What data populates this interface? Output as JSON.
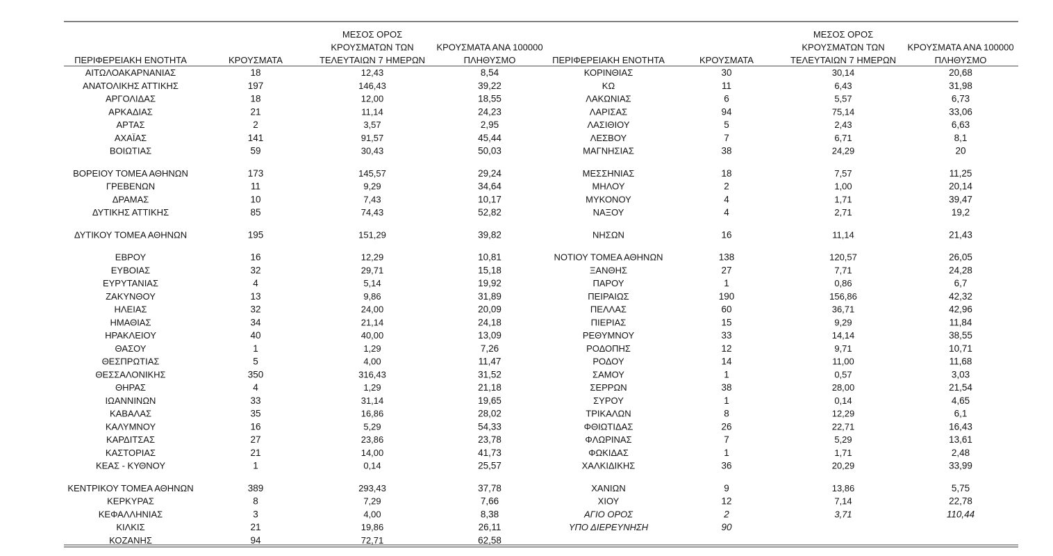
{
  "table": {
    "headers": [
      [
        "ΠΕΡΙΦΕΡΕΙΑΚΗ ΕΝΟΤΗΤΑ"
      ],
      [
        "ΚΡΟΥΣΜΑΤΑ"
      ],
      [
        "ΜΕΣΟΣ ΟΡΟΣ",
        "ΚΡΟΥΣΜΑΤΩΝ ΤΩΝ",
        "ΤΕΛΕΥΤΑΙΩΝ 7 ΗΜΕΡΩΝ"
      ],
      [
        "ΚΡΟΥΣΜΑΤΑ ΑΝΑ 100000",
        "ΠΛΗΘΥΣΜΟ"
      ],
      [
        "ΠΕΡΙΦΕΡΕΙΑΚΗ ΕΝΟΤΗΤΑ"
      ],
      [
        "ΚΡΟΥΣΜΑΤΑ"
      ],
      [
        "ΜΕΣΟΣ ΟΡΟΣ",
        "ΚΡΟΥΣΜΑΤΩΝ ΤΩΝ",
        "ΤΕΛΕΥΤΑΙΩΝ 7 ΗΜΕΡΩΝ"
      ],
      [
        "ΚΡΟΥΣΜΑΤΑ ΑΝΑ 100000",
        "ΠΛΗΘΥΣΜΟ"
      ]
    ],
    "rows": [
      [
        "ΑΙΤΩΛΟΑΚΑΡΝΑΝΙΑΣ",
        "18",
        "12,43",
        "8,54",
        "ΚΟΡΙΝΘΙΑΣ",
        "30",
        "30,14",
        "20,68"
      ],
      [
        "ΑΝΑΤΟΛΙΚΗΣ ΑΤΤΙΚΗΣ",
        "197",
        "146,43",
        "39,22",
        "ΚΩ",
        "11",
        "6,43",
        "31,98"
      ],
      [
        "ΑΡΓΟΛΙΔΑΣ",
        "18",
        "12,00",
        "18,55",
        "ΛΑΚΩΝΙΑΣ",
        "6",
        "5,57",
        "6,73"
      ],
      [
        "ΑΡΚΑΔΙΑΣ",
        "21",
        "11,14",
        "24,23",
        "ΛΑΡΙΣΑΣ",
        "94",
        "75,14",
        "33,06"
      ],
      [
        "ΑΡΤΑΣ",
        "2",
        "3,57",
        "2,95",
        "ΛΑΣΙΘΙΟΥ",
        "5",
        "2,43",
        "6,63"
      ],
      [
        "ΑΧΑΪΑΣ",
        "141",
        "91,57",
        "45,44",
        "ΛΕΣΒΟΥ",
        "7",
        "6,71",
        "8,1"
      ],
      [
        "ΒΟΙΩΤΙΑΣ",
        "59",
        "30,43",
        "50,03",
        "ΜΑΓΝΗΣΙΑΣ",
        "38",
        "24,29",
        "20"
      ],
      [
        "ΒΟΡΕΙΟΥ ΤΟΜΕΑ ΑΘΗΝΩΝ",
        "173",
        "145,57",
        "29,24",
        "ΜΕΣΣΗΝΙΑΣ",
        "18",
        "7,57",
        "11,25"
      ],
      [
        "ΓΡΕΒΕΝΩΝ",
        "11",
        "9,29",
        "34,64",
        "ΜΗΛΟΥ",
        "2",
        "1,00",
        "20,14"
      ],
      [
        "ΔΡΑΜΑΣ",
        "10",
        "7,43",
        "10,17",
        "ΜΥΚΟΝΟΥ",
        "4",
        "1,71",
        "39,47"
      ],
      [
        "ΔΥΤΙΚΗΣ ΑΤΤΙΚΗΣ",
        "85",
        "74,43",
        "52,82",
        "ΝΑΞΟΥ",
        "4",
        "2,71",
        "19,2"
      ],
      [
        "ΔΥΤΙΚΟΥ ΤΟΜΕΑ ΑΘΗΝΩΝ",
        "195",
        "151,29",
        "39,82",
        "ΝΗΣΩΝ",
        "16",
        "11,14",
        "21,43"
      ],
      [
        "ΕΒΡΟΥ",
        "16",
        "12,29",
        "10,81",
        "ΝΟΤΙΟΥ ΤΟΜΕΑ ΑΘΗΝΩΝ",
        "138",
        "120,57",
        "26,05"
      ],
      [
        "ΕΥΒΟΙΑΣ",
        "32",
        "29,71",
        "15,18",
        "ΞΑΝΘΗΣ",
        "27",
        "7,71",
        "24,28"
      ],
      [
        "ΕΥΡΥΤΑΝΙΑΣ",
        "4",
        "5,14",
        "19,92",
        "ΠΑΡΟΥ",
        "1",
        "0,86",
        "6,7"
      ],
      [
        "ΖΑΚΥΝΘΟΥ",
        "13",
        "9,86",
        "31,89",
        "ΠΕΙΡΑΙΩΣ",
        "190",
        "156,86",
        "42,32"
      ],
      [
        "ΗΛΕΙΑΣ",
        "32",
        "24,00",
        "20,09",
        "ΠΕΛΛΑΣ",
        "60",
        "36,71",
        "42,96"
      ],
      [
        "ΗΜΑΘΙΑΣ",
        "34",
        "21,14",
        "24,18",
        "ΠΙΕΡΙΑΣ",
        "15",
        "9,29",
        "11,84"
      ],
      [
        "ΗΡΑΚΛΕΙΟΥ",
        "40",
        "40,00",
        "13,09",
        "ΡΕΘΥΜΝΟΥ",
        "33",
        "14,14",
        "38,55"
      ],
      [
        "ΘΑΣΟΥ",
        "1",
        "1,29",
        "7,26",
        "ΡΟΔΟΠΗΣ",
        "12",
        "9,71",
        "10,71"
      ],
      [
        "ΘΕΣΠΡΩΤΙΑΣ",
        "5",
        "4,00",
        "11,47",
        "ΡΟΔΟΥ",
        "14",
        "11,00",
        "11,68"
      ],
      [
        "ΘΕΣΣΑΛΟΝΙΚΗΣ",
        "350",
        "316,43",
        "31,52",
        "ΣΑΜΟΥ",
        "1",
        "0,57",
        "3,03"
      ],
      [
        "ΘΗΡΑΣ",
        "4",
        "1,29",
        "21,18",
        "ΣΕΡΡΩΝ",
        "38",
        "28,00",
        "21,54"
      ],
      [
        "ΙΩΑΝΝΙΝΩΝ",
        "33",
        "31,14",
        "19,65",
        "ΣΥΡΟΥ",
        "1",
        "0,14",
        "4,65"
      ],
      [
        "ΚΑΒΑΛΑΣ",
        "35",
        "16,86",
        "28,02",
        "ΤΡΙΚΑΛΩΝ",
        "8",
        "12,29",
        "6,1"
      ],
      [
        "ΚΑΛΥΜΝΟΥ",
        "16",
        "5,29",
        "54,33",
        "ΦΘΙΩΤΙΔΑΣ",
        "26",
        "22,71",
        "16,43"
      ],
      [
        "ΚΑΡΔΙΤΣΑΣ",
        "27",
        "23,86",
        "23,78",
        "ΦΛΩΡΙΝΑΣ",
        "7",
        "5,29",
        "13,61"
      ],
      [
        "ΚΑΣΤΟΡΙΑΣ",
        "21",
        "14,00",
        "41,73",
        "ΦΩΚΙΔΑΣ",
        "1",
        "1,71",
        "2,48"
      ],
      [
        "ΚΕΑΣ - ΚΥΘΝΟΥ",
        "1",
        "0,14",
        "25,57",
        "ΧΑΛΚΙΔΙΚΗΣ",
        "36",
        "20,29",
        "33,99"
      ],
      [
        "ΚΕΝΤΡΙΚΟΥ ΤΟΜΕΑ ΑΘΗΝΩΝ",
        "389",
        "293,43",
        "37,78",
        "ΧΑΝΙΩΝ",
        "9",
        "13,86",
        "5,75"
      ],
      [
        "ΚΕΡΚΥΡΑΣ",
        "8",
        "7,29",
        "7,66",
        "ΧΙΟΥ",
        "12",
        "7,14",
        "22,78"
      ],
      [
        "ΚΕΦΑΛΛΗΝΙΑΣ",
        "3",
        "4,00",
        "8,38",
        "ΑΓΙΟ ΟΡΟΣ",
        "2",
        "3,71",
        "110,44"
      ],
      [
        "ΚΙΛΚΙΣ",
        "21",
        "19,86",
        "26,11",
        "ΥΠΟ ΔΙΕΡΕΥΝΗΣΗ",
        "90"
      ],
      [
        "ΚΟΖΑΝΗΣ",
        "94",
        "72,71",
        "62,58"
      ]
    ]
  }
}
